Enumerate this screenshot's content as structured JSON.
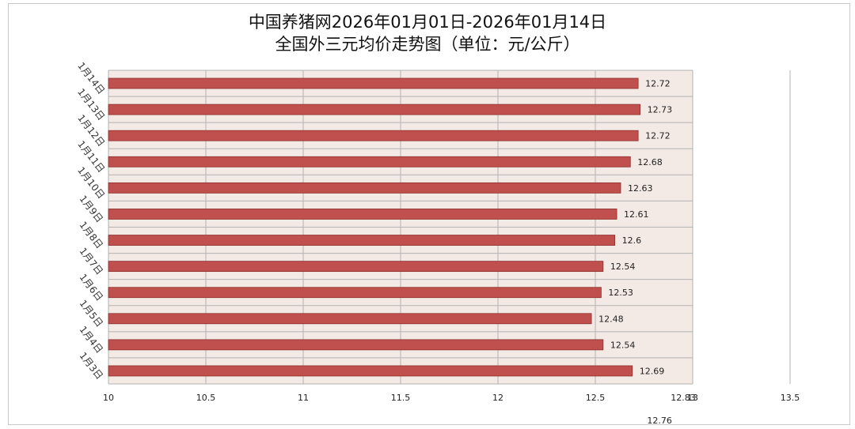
{
  "chart_data": {
    "type": "bar",
    "orientation": "horizontal",
    "title": "中国养猪网2026年01月01日-2026年01月14日",
    "subtitle": "全国外三元均价走势图（单位：元/公斤）",
    "categories": [
      "1月14日",
      "1月13日",
      "1月12日",
      "1月11日",
      "1月10日",
      "1月9日",
      "1月8日",
      "1月7日",
      "1月6日",
      "1月5日",
      "1月4日",
      "1月3日"
    ],
    "values": [
      12.72,
      12.73,
      12.72,
      12.68,
      12.63,
      12.61,
      12.6,
      12.54,
      12.53,
      12.48,
      12.54,
      12.69
    ],
    "value_labels": [
      "12.72",
      "12.73",
      "12.72",
      "12.68",
      "12.63",
      "12.61",
      "12.6",
      "12.54",
      "12.53",
      "12.48",
      "12.54",
      "12.69"
    ],
    "xlim": [
      10,
      13.5
    ],
    "x_ticks": [
      "10",
      "10.5",
      "11",
      "11.5",
      "12",
      "12.5",
      "13",
      "13.5"
    ],
    "extra_labels": [
      "12.83",
      "12.76"
    ],
    "grid": true,
    "colors": {
      "bar": "#c0504d",
      "bar_edge": "#8e2f2c",
      "plot_bg": "#f3e9e5",
      "grid": "#b3b3b3"
    }
  }
}
